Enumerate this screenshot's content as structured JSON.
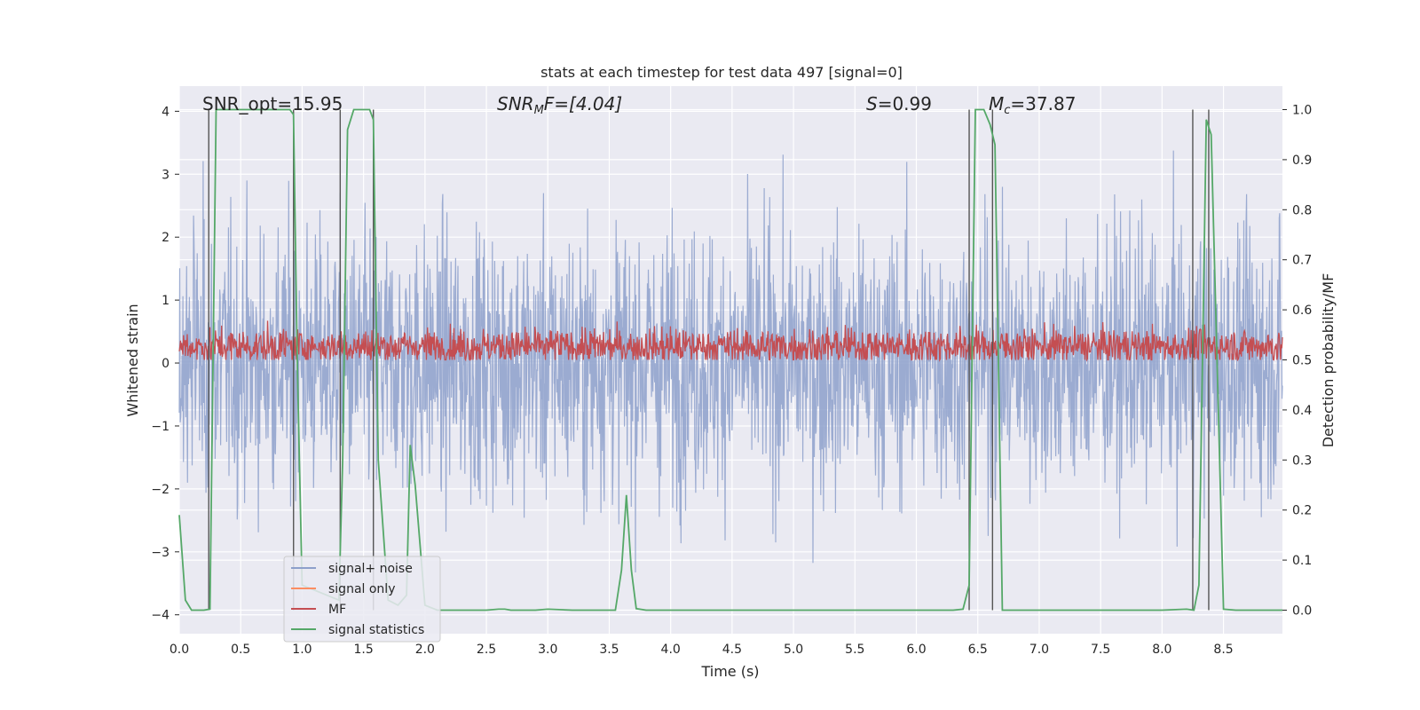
{
  "chart_data": {
    "type": "line",
    "title": "stats at each timestep for test data 497 [signal=0]",
    "xlabel": "Time (s)",
    "ylabel": "Whitened strain",
    "ylabel_right": "Detection probability/MF",
    "xlim": [
      0.0,
      8.98
    ],
    "ylim": [
      -4.3,
      4.4
    ],
    "ylim_right": [
      -0.047,
      1.047
    ],
    "x_ticks": [
      "0.0",
      "0.5",
      "1.0",
      "1.5",
      "2.0",
      "2.5",
      "3.0",
      "3.5",
      "4.0",
      "4.5",
      "5.0",
      "5.5",
      "6.0",
      "6.5",
      "7.0",
      "7.5",
      "8.0",
      "8.5"
    ],
    "y_ticks": [
      "4",
      "3",
      "2",
      "1",
      "0",
      "−1",
      "−2",
      "−3",
      "−4"
    ],
    "y_ticks_right": [
      "1.0",
      "0.9",
      "0.8",
      "0.7",
      "0.6",
      "0.5",
      "0.4",
      "0.3",
      "0.2",
      "0.1",
      "0.0"
    ],
    "grid": true,
    "annotations": {
      "snr_opt": "SNR_opt=15.95",
      "snr_mf_label": "SNR",
      "snr_mf_sub": "M",
      "snr_mf_rest": "F=[4.04]",
      "s_label": "S",
      "s_rest": "=0.99",
      "mc_label": "M",
      "mc_sub": "c",
      "mc_rest": "=37.87"
    },
    "legend": {
      "placement": "lower-left",
      "entries": [
        "signal+ noise",
        "signal only",
        "MF",
        "signal statistics"
      ]
    },
    "colors": {
      "noise": "#8da0cb",
      "signal_only": "#fc8d62",
      "mf": "#c44e52",
      "stats": "#55a868",
      "vlines": "#555555",
      "background": "#eaeaf2"
    },
    "series": [
      {
        "name": "signal+ noise",
        "axis": "left",
        "description": "whitened strain noise, approximately -3.5 to 3.5",
        "amplitude_range": [
          -3.6,
          3.9
        ]
      },
      {
        "name": "MF",
        "axis": "right",
        "description": "matched filter output, approximately 0.5 to 0.6",
        "value_range": [
          0.5,
          0.61
        ]
      },
      {
        "name": "signal statistics",
        "axis": "right",
        "x": [
          0.0,
          0.05,
          0.1,
          0.15,
          0.2,
          0.25,
          0.3,
          0.35,
          0.5,
          0.7,
          0.9,
          0.93,
          0.96,
          1.0,
          1.1,
          1.2,
          1.3,
          1.33,
          1.37,
          1.42,
          1.5,
          1.55,
          1.58,
          1.62,
          1.7,
          1.78,
          1.85,
          1.88,
          1.92,
          1.97,
          2.0,
          2.1,
          2.3,
          2.5,
          2.6,
          2.65,
          2.7,
          2.9,
          3.0,
          3.2,
          3.4,
          3.55,
          3.6,
          3.64,
          3.68,
          3.72,
          3.8,
          4.0,
          4.5,
          5.0,
          5.5,
          6.0,
          6.3,
          6.38,
          6.43,
          6.48,
          6.55,
          6.6,
          6.64,
          6.7,
          7.0,
          7.5,
          8.0,
          8.2,
          8.26,
          8.3,
          8.36,
          8.4,
          8.5,
          8.6,
          8.98
        ],
        "values": [
          0.19,
          0.02,
          0.0,
          0.0,
          0.0,
          0.002,
          1.0,
          1.0,
          1.0,
          1.0,
          1.0,
          0.99,
          0.5,
          0.05,
          0.04,
          0.03,
          0.02,
          0.3,
          0.96,
          1.0,
          1.0,
          1.0,
          0.98,
          0.3,
          0.02,
          0.01,
          0.03,
          0.33,
          0.25,
          0.1,
          0.01,
          0.0,
          0.0,
          0.0,
          0.002,
          0.002,
          0.0,
          0.0,
          0.002,
          0.0,
          0.0,
          0.0,
          0.08,
          0.23,
          0.08,
          0.003,
          0.0,
          0.0,
          0.0,
          0.0,
          0.0,
          0.0,
          0.0,
          0.002,
          0.05,
          1.0,
          1.0,
          0.97,
          0.93,
          0.0,
          0.0,
          0.0,
          0.0,
          0.002,
          0.0,
          0.05,
          0.98,
          0.95,
          0.002,
          0.0,
          0.0
        ]
      }
    ],
    "vertical_lines": [
      0.24,
      0.93,
      1.31,
      1.58,
      6.43,
      6.62,
      8.25,
      8.38
    ]
  }
}
